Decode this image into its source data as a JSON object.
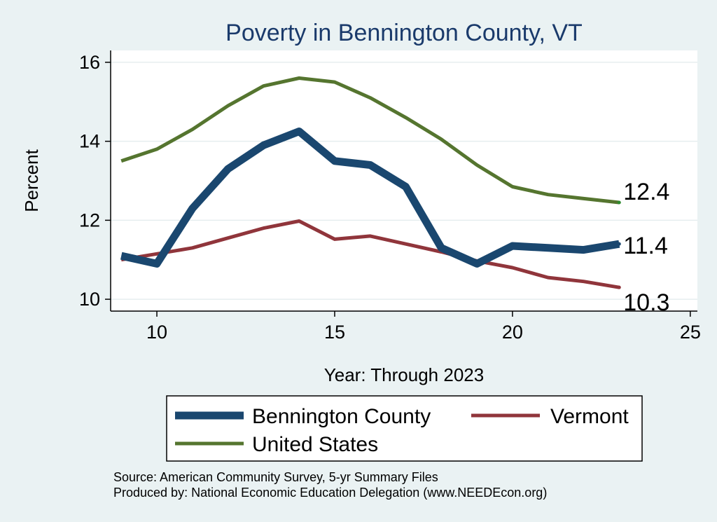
{
  "chart_data": {
    "type": "line",
    "title": "Poverty in Bennington County, VT",
    "xlabel": "Year: Through 2023",
    "ylabel": "Percent",
    "xlim": [
      8.7,
      25.2
    ],
    "ylim": [
      9.7,
      16.3
    ],
    "xticks": [
      10,
      15,
      20,
      25
    ],
    "yticks": [
      10,
      12,
      14,
      16
    ],
    "grid": true,
    "legend_position": "bottom",
    "series": [
      {
        "name": "Bennington County",
        "color": "#1a476f",
        "x": [
          9,
          10,
          11,
          12,
          13,
          14,
          15,
          16,
          17,
          18,
          19,
          20,
          21,
          22,
          23
        ],
        "y": [
          11.1,
          10.9,
          12.3,
          13.3,
          13.9,
          14.25,
          13.5,
          13.4,
          12.85,
          11.3,
          10.9,
          11.35,
          11.3,
          11.25,
          11.4
        ],
        "end_label": "11.4"
      },
      {
        "name": "Vermont",
        "color": "#90353b",
        "x": [
          9,
          10,
          11,
          12,
          13,
          14,
          15,
          16,
          17,
          18,
          19,
          20,
          21,
          22,
          23
        ],
        "y": [
          11.0,
          11.15,
          11.3,
          11.55,
          11.8,
          11.98,
          11.52,
          11.6,
          11.4,
          11.2,
          10.97,
          10.8,
          10.55,
          10.45,
          10.3
        ],
        "end_label": "10.3"
      },
      {
        "name": "United States",
        "color": "#55752f",
        "x": [
          9,
          10,
          11,
          12,
          13,
          14,
          15,
          16,
          17,
          18,
          19,
          20,
          21,
          22,
          23
        ],
        "y": [
          13.5,
          13.8,
          14.3,
          14.9,
          15.4,
          15.6,
          15.5,
          15.1,
          14.6,
          14.05,
          13.4,
          12.85,
          12.65,
          12.55,
          12.45
        ],
        "end_label": "12.4"
      }
    ],
    "notes": [
      "Source: American Community Survey, 5-yr Summary Files",
      "Produced by: National Economic Education Delegation (www.NEEDEcon.org)"
    ]
  }
}
